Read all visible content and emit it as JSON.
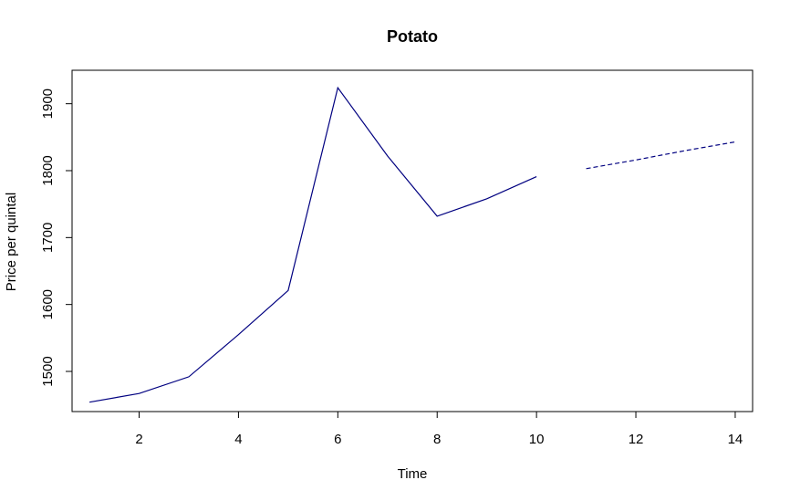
{
  "chart_data": {
    "type": "line",
    "title": "Potato",
    "xlabel": "Time",
    "ylabel": "Price per quintal",
    "xlim": [
      0.65,
      14.35
    ],
    "ylim": [
      1440,
      1950
    ],
    "xticks": [
      2,
      4,
      6,
      8,
      10,
      12,
      14
    ],
    "yticks": [
      1500,
      1600,
      1700,
      1800,
      1900
    ],
    "grid": false,
    "series": [
      {
        "style": "solid",
        "color": "#000080",
        "x": [
          1,
          2,
          3,
          4,
          5,
          6,
          7,
          8,
          9,
          10
        ],
        "values": [
          1454,
          1467,
          1492,
          1555,
          1621,
          1924,
          1822,
          1732,
          1758,
          1791
        ]
      },
      {
        "style": "dashed",
        "color": "#000080",
        "x": [
          11,
          12,
          13,
          14
        ],
        "values": [
          1803,
          1816,
          1830,
          1843
        ]
      }
    ]
  }
}
